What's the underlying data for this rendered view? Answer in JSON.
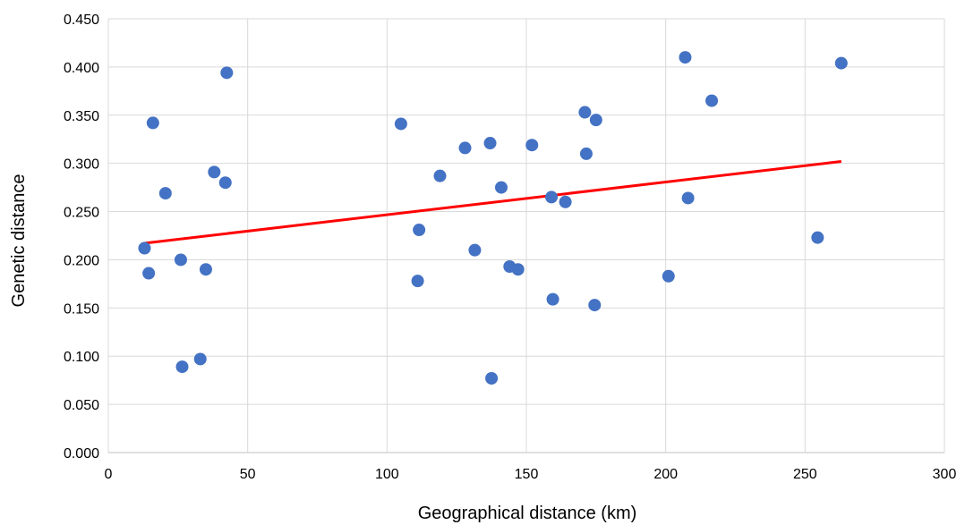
{
  "chart_data": {
    "type": "scatter",
    "title": "",
    "xlabel": "Geographical distance (km)",
    "ylabel": "Genetic distance",
    "xlim": [
      0,
      300
    ],
    "ylim": [
      0,
      0.45
    ],
    "x_ticks": [
      0,
      50,
      100,
      150,
      200,
      250,
      300
    ],
    "x_tick_labels": [
      "0",
      "50",
      "100",
      "150",
      "200",
      "250",
      "300"
    ],
    "y_ticks": [
      0,
      0.05,
      0.1,
      0.15,
      0.2,
      0.25,
      0.3,
      0.35,
      0.4,
      0.45
    ],
    "y_tick_labels": [
      "0.000",
      "0.050",
      "0.100",
      "0.150",
      "0.200",
      "0.250",
      "0.300",
      "0.350",
      "0.400",
      "0.450"
    ],
    "grid": true,
    "legend": "none",
    "point_color": "#4472C4",
    "trendline_color": "#FF0000",
    "series": [
      {
        "points": [
          {
            "x": 13,
            "y": 0.212
          },
          {
            "x": 14.5,
            "y": 0.186
          },
          {
            "x": 16,
            "y": 0.342
          },
          {
            "x": 20.5,
            "y": 0.269
          },
          {
            "x": 26,
            "y": 0.2
          },
          {
            "x": 26.5,
            "y": 0.089
          },
          {
            "x": 33,
            "y": 0.097
          },
          {
            "x": 35,
            "y": 0.19
          },
          {
            "x": 38,
            "y": 0.291
          },
          {
            "x": 42,
            "y": 0.28
          },
          {
            "x": 42.5,
            "y": 0.394
          },
          {
            "x": 105,
            "y": 0.341
          },
          {
            "x": 111,
            "y": 0.178
          },
          {
            "x": 111.5,
            "y": 0.231
          },
          {
            "x": 119,
            "y": 0.287
          },
          {
            "x": 128,
            "y": 0.316
          },
          {
            "x": 131.5,
            "y": 0.21
          },
          {
            "x": 137,
            "y": 0.321
          },
          {
            "x": 137.5,
            "y": 0.077
          },
          {
            "x": 141,
            "y": 0.275
          },
          {
            "x": 144,
            "y": 0.193
          },
          {
            "x": 147,
            "y": 0.19
          },
          {
            "x": 152,
            "y": 0.319
          },
          {
            "x": 159,
            "y": 0.265
          },
          {
            "x": 159.5,
            "y": 0.159
          },
          {
            "x": 164,
            "y": 0.26
          },
          {
            "x": 171,
            "y": 0.353
          },
          {
            "x": 171.5,
            "y": 0.31
          },
          {
            "x": 174.5,
            "y": 0.153
          },
          {
            "x": 175,
            "y": 0.345
          },
          {
            "x": 201,
            "y": 0.183
          },
          {
            "x": 207,
            "y": 0.41
          },
          {
            "x": 208,
            "y": 0.264
          },
          {
            "x": 216.5,
            "y": 0.365
          },
          {
            "x": 254.5,
            "y": 0.223
          },
          {
            "x": 263,
            "y": 0.404
          }
        ]
      }
    ],
    "trendline": {
      "x": [
        12.5,
        263
      ],
      "y": [
        0.217,
        0.302
      ]
    }
  }
}
